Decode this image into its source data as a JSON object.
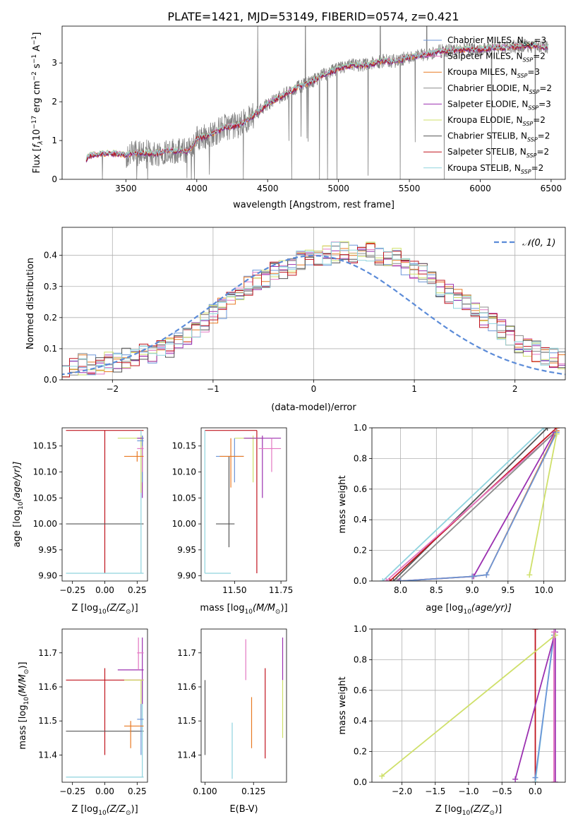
{
  "figure": {
    "title": "PLATE=1421, MJD=53149, FIBERID=0574, z=0.421"
  },
  "colors": {
    "chabrier_miles": "#6b95d8",
    "salpeter_miles": "#e377c2",
    "kroupa_miles": "#e87a24",
    "chabrier_elodie": "#8c8c8c",
    "salpeter_elodie": "#9b30b0",
    "kroupa_elodie": "#cfe06a",
    "chabrier_stelib": "#555555",
    "salpeter_stelib": "#c0141e",
    "kroupa_stelib": "#8fd3de",
    "data": "#808080",
    "normal": "#5b8bd8"
  },
  "chart_data": [
    {
      "id": "spectrum",
      "type": "line",
      "title": "PLATE=1421, MJD=53149, FIBERID=0574, z=0.421",
      "xlabel": "wavelength [Angstrom, rest frame]",
      "ylabel_parts": [
        "Flux [",
        "f",
        "λ",
        "10",
        "−17",
        " erg cm",
        "−2",
        " s",
        "−1",
        " A",
        "−1",
        "]"
      ],
      "xlim": [
        3050,
        6600
      ],
      "ylim": [
        0,
        3.95
      ],
      "xticks": [
        3500,
        4000,
        4500,
        5000,
        5500,
        6000,
        6500
      ],
      "yticks": [
        0,
        1,
        2,
        3
      ],
      "legend": [
        {
          "key": "chabrier_miles",
          "text": "Chabrier MILES, N",
          "sub": "SSP",
          "val": "=3"
        },
        {
          "key": "salpeter_miles",
          "text": "Salpeter MILES, N",
          "sub": "SSP",
          "val": "=2"
        },
        {
          "key": "kroupa_miles",
          "text": "Kroupa MILES, N",
          "sub": "SSP",
          "val": "=3"
        },
        {
          "key": "chabrier_elodie",
          "text": "Chabrier ELODIE, N",
          "sub": "SSP",
          "val": "=2"
        },
        {
          "key": "salpeter_elodie",
          "text": "Salpeter ELODIE, N",
          "sub": "SSP",
          "val": "=3"
        },
        {
          "key": "kroupa_elodie",
          "text": "Kroupa ELODIE, N",
          "sub": "SSP",
          "val": "=2"
        },
        {
          "key": "chabrier_stelib",
          "text": "Chabrier STELIB, N",
          "sub": "SSP",
          "val": "=2"
        },
        {
          "key": "salpeter_stelib",
          "text": "Salpeter STELIB, N",
          "sub": "SSP",
          "val": "=2"
        },
        {
          "key": "kroupa_stelib",
          "text": "Kroupa STELIB, N",
          "sub": "SSP",
          "val": "=2"
        }
      ],
      "model_continuum": [
        [
          3220,
          0.5
        ],
        [
          3240,
          0.62
        ],
        [
          3300,
          0.65
        ],
        [
          3400,
          0.67
        ],
        [
          3500,
          0.63
        ],
        [
          3600,
          0.7
        ],
        [
          3700,
          0.66
        ],
        [
          3800,
          0.75
        ],
        [
          3900,
          0.72
        ],
        [
          3950,
          0.75
        ],
        [
          4000,
          1.05
        ],
        [
          4100,
          1.15
        ],
        [
          4200,
          1.35
        ],
        [
          4300,
          1.4
        ],
        [
          4400,
          1.65
        ],
        [
          4500,
          1.95
        ],
        [
          4600,
          2.15
        ],
        [
          4700,
          2.35
        ],
        [
          4800,
          2.5
        ],
        [
          4900,
          2.7
        ],
        [
          5000,
          2.85
        ],
        [
          5100,
          2.95
        ],
        [
          5200,
          2.95
        ],
        [
          5300,
          3.05
        ],
        [
          5400,
          3.05
        ],
        [
          5500,
          3.15
        ],
        [
          5600,
          3.2
        ],
        [
          5700,
          3.3
        ],
        [
          5800,
          3.32
        ],
        [
          5900,
          3.35
        ],
        [
          6000,
          3.35
        ],
        [
          6100,
          3.4
        ],
        [
          6200,
          3.4
        ],
        [
          6300,
          3.45
        ],
        [
          6400,
          3.45
        ],
        [
          6470,
          3.4
        ]
      ]
    },
    {
      "id": "residuals",
      "type": "histogram",
      "xlabel": "(data-model)/error",
      "ylabel": "Normed distribution",
      "xlim": [
        -2.5,
        2.5
      ],
      "ylim": [
        0,
        0.49
      ],
      "xticks": [
        -2,
        -1,
        0,
        1,
        2
      ],
      "yticks": [
        0.0,
        0.1,
        0.2,
        0.3,
        0.4
      ],
      "bin_width": 0.1,
      "legend": [
        {
          "key": "normal",
          "label": "𝒩(0, 1)"
        }
      ],
      "profile": [
        0.04,
        0.03,
        0.04,
        0.05,
        0.05,
        0.05,
        0.06,
        0.06,
        0.07,
        0.07,
        0.08,
        0.08,
        0.1,
        0.1,
        0.12,
        0.14,
        0.16,
        0.18,
        0.21,
        0.23,
        0.26,
        0.28,
        0.3,
        0.32,
        0.33,
        0.35,
        0.36,
        0.37,
        0.38,
        0.39,
        0.4,
        0.4,
        0.41,
        0.41,
        0.41,
        0.41,
        0.41,
        0.4,
        0.4,
        0.39,
        0.37,
        0.36,
        0.34,
        0.32,
        0.3,
        0.28,
        0.26,
        0.24,
        0.22,
        0.2,
        0.18,
        0.16,
        0.14,
        0.12,
        0.1,
        0.09,
        0.08,
        0.07,
        0.06,
        0.06
      ]
    },
    {
      "id": "age_vs_Z",
      "type": "scatter",
      "xlabel": "Z [log",
      "xlabel_sub": "10",
      "xlabel_rest": "(Z/Z",
      "xlabel_sun": "⊙",
      "xlabel_end": ")]",
      "ylabel": "age  [log",
      "ylabel_sub": "10",
      "ylabel_rest": "(age/yr)]",
      "xlim": [
        -0.33,
        0.33
      ],
      "ylim": [
        9.89,
        10.185
      ],
      "xticks": [
        -0.25,
        0.0,
        0.25
      ],
      "yticks": [
        9.9,
        9.95,
        10.0,
        10.05,
        10.1,
        10.15
      ],
      "points": [
        {
          "key": "salpeter_stelib",
          "x": 0.0,
          "y": 10.18,
          "xe": [
            -0.3,
            0.3
          ],
          "ye": [
            9.905,
            10.18
          ]
        },
        {
          "key": "chabrier_stelib",
          "x": 0.0,
          "y": 10.0,
          "xe": [
            -0.3,
            0.3
          ],
          "ye": [
            10.0,
            10.0
          ]
        },
        {
          "key": "kroupa_stelib",
          "x": 0.28,
          "y": 9.905,
          "xe": [
            -0.3,
            0.3
          ],
          "ye": [
            9.905,
            10.18
          ]
        },
        {
          "key": "kroupa_elodie",
          "x": 0.28,
          "y": 10.165,
          "xe": [
            0.1,
            0.3
          ],
          "ye": [
            10.06,
            10.17
          ]
        },
        {
          "key": "salpeter_elodie",
          "x": 0.29,
          "y": 10.165,
          "xe": [
            0.25,
            0.3
          ],
          "ye": [
            10.05,
            10.17
          ]
        },
        {
          "key": "chabrier_miles",
          "x": 0.29,
          "y": 10.16,
          "xe": [
            0.25,
            0.3
          ],
          "ye": [
            10.08,
            10.17
          ]
        },
        {
          "key": "salpeter_miles",
          "x": 0.29,
          "y": 10.145,
          "xe": [
            0.25,
            0.3
          ],
          "ye": [
            10.1,
            10.15
          ]
        },
        {
          "key": "kroupa_miles",
          "x": 0.25,
          "y": 10.13,
          "xe": [
            0.15,
            0.3
          ],
          "ye": [
            10.12,
            10.14
          ]
        }
      ]
    },
    {
      "id": "age_vs_mass",
      "type": "scatter",
      "xlabel": "mass [log",
      "xlabel_sub": "10",
      "xlabel_rest": "(M/M",
      "xlabel_sun": "⊙",
      "xlabel_end": ")]",
      "xlim": [
        11.32,
        11.78
      ],
      "ylim": [
        9.89,
        10.185
      ],
      "xticks": [
        11.5,
        11.75
      ],
      "yticks": [
        9.9,
        9.95,
        10.0,
        10.05,
        10.1,
        10.15
      ],
      "points": [
        {
          "key": "salpeter_stelib",
          "x": 11.62,
          "y": 10.18,
          "xe": [
            11.34,
            11.62
          ],
          "ye": [
            9.905,
            10.18
          ]
        },
        {
          "key": "chabrier_stelib",
          "x": 11.47,
          "y": 10.0,
          "xe": [
            11.4,
            11.5
          ],
          "ye": [
            9.955,
            10.13
          ]
        },
        {
          "key": "kroupa_stelib",
          "x": 11.34,
          "y": 9.905,
          "xe": [
            11.34,
            11.48
          ],
          "ye": [
            9.905,
            10.18
          ]
        },
        {
          "key": "kroupa_elodie",
          "x": 11.6,
          "y": 10.165,
          "xe": [
            11.5,
            11.65
          ],
          "ye": [
            10.08,
            10.17
          ]
        },
        {
          "key": "salpeter_elodie",
          "x": 11.65,
          "y": 10.165,
          "xe": [
            11.55,
            11.75
          ],
          "ye": [
            10.05,
            10.17
          ]
        },
        {
          "key": "chabrier_miles",
          "x": 11.5,
          "y": 10.13,
          "xe": [
            11.4,
            11.55
          ],
          "ye": [
            10.08,
            10.165
          ]
        },
        {
          "key": "salpeter_miles",
          "x": 11.7,
          "y": 10.145,
          "xe": [
            11.63,
            11.75
          ],
          "ye": [
            10.1,
            10.165
          ]
        },
        {
          "key": "kroupa_miles",
          "x": 11.48,
          "y": 10.13,
          "xe": [
            11.42,
            11.55
          ],
          "ye": [
            10.07,
            10.165
          ]
        }
      ]
    },
    {
      "id": "mass_weight_vs_age",
      "type": "line",
      "xlabel": "age  [log",
      "xlabel_sub": "10",
      "xlabel_rest": "(age/yr)]",
      "ylabel": "mass weight",
      "xlim": [
        7.6,
        10.3
      ],
      "ylim": [
        0,
        1.0
      ],
      "xticks": [
        8.0,
        8.5,
        9.0,
        9.5,
        10.0
      ],
      "yticks": [
        0.0,
        0.2,
        0.4,
        0.6,
        0.8,
        1.0
      ],
      "series": [
        {
          "key": "kroupa_stelib",
          "x": [
            7.75,
            10.0
          ],
          "y": [
            0.0,
            1.0
          ]
        },
        {
          "key": "chabrier_stelib",
          "x": [
            7.9,
            10.05
          ],
          "y": [
            0.0,
            1.0
          ]
        },
        {
          "key": "salpeter_stelib",
          "x": [
            7.85,
            10.18
          ],
          "y": [
            0.0,
            1.0
          ]
        },
        {
          "key": "salpeter_miles",
          "x": [
            7.8,
            10.18
          ],
          "y": [
            0.0,
            0.98
          ]
        },
        {
          "key": "chabrier_elodie",
          "x": [
            7.95,
            10.15
          ],
          "y": [
            0.0,
            0.97
          ]
        },
        {
          "key": "salpeter_elodie",
          "x": [
            7.98,
            9.02,
            10.15
          ],
          "y": [
            0.0,
            0.03,
            0.97
          ]
        },
        {
          "key": "kroupa_miles",
          "x": [
            8.0,
            9.0,
            9.2,
            10.18
          ],
          "y": [
            0.0,
            0.03,
            0.04,
            0.98
          ]
        },
        {
          "key": "chabrier_miles",
          "x": [
            8.0,
            9.0,
            9.2,
            10.18
          ],
          "y": [
            0.0,
            0.03,
            0.04,
            0.97
          ]
        },
        {
          "key": "kroupa_elodie",
          "x": [
            9.8,
            10.18
          ],
          "y": [
            0.04,
            0.96
          ]
        }
      ]
    },
    {
      "id": "mass_vs_Z",
      "type": "scatter",
      "xlabel": "Z [log",
      "xlabel_sub": "10",
      "xlabel_rest": "(Z/Z",
      "xlabel_sun": "⊙",
      "xlabel_end": ")]",
      "ylabel": "mass [log",
      "ylabel_sub": "10",
      "ylabel_rest": "(M/M",
      "ylabel_sun": "⊙",
      "ylabel_end": ")]",
      "xlim": [
        -0.33,
        0.33
      ],
      "ylim": [
        11.32,
        11.77
      ],
      "xticks": [
        -0.25,
        0.0,
        0.25
      ],
      "yticks": [
        11.4,
        11.5,
        11.6,
        11.7
      ],
      "points": [
        {
          "key": "salpeter_stelib",
          "x": 0.0,
          "y": 11.62,
          "xe": [
            -0.3,
            0.3
          ],
          "ye": [
            11.4,
            11.655
          ]
        },
        {
          "key": "chabrier_stelib",
          "x": 0.0,
          "y": 11.47,
          "xe": [
            -0.3,
            0.3
          ],
          "ye": [
            11.47,
            11.47
          ]
        },
        {
          "key": "kroupa_stelib",
          "x": 0.29,
          "y": 11.335,
          "xe": [
            -0.3,
            0.3
          ],
          "ye": [
            11.335,
            11.62
          ]
        },
        {
          "key": "salpeter_elodie",
          "x": 0.29,
          "y": 11.65,
          "xe": [
            0.1,
            0.3
          ],
          "ye": [
            11.55,
            11.745
          ]
        },
        {
          "key": "kroupa_elodie",
          "x": 0.28,
          "y": 11.62,
          "xe": [
            0.15,
            0.3
          ],
          "ye": [
            11.5,
            11.62
          ]
        },
        {
          "key": "salpeter_miles",
          "x": 0.26,
          "y": 11.7,
          "xe": [
            0.25,
            0.3
          ],
          "ye": [
            11.65,
            11.745
          ]
        },
        {
          "key": "chabrier_miles",
          "x": 0.28,
          "y": 11.505,
          "xe": [
            0.25,
            0.3
          ],
          "ye": [
            11.4,
            11.55
          ]
        },
        {
          "key": "kroupa_miles",
          "x": 0.2,
          "y": 11.485,
          "xe": [
            0.15,
            0.3
          ],
          "ye": [
            11.42,
            11.5
          ]
        }
      ]
    },
    {
      "id": "mass_vs_ebv",
      "type": "scatter",
      "xlabel": "E(B-V)",
      "xlim": [
        0.098,
        0.142
      ],
      "ylim": [
        11.32,
        11.77
      ],
      "xticks": [
        0.1,
        0.125
      ],
      "yticks": [
        11.4,
        11.5,
        11.6,
        11.7
      ],
      "points": [
        {
          "key": "chabrier_stelib",
          "x": 0.1,
          "y": 11.5,
          "xe": [
            0.1,
            0.1
          ],
          "ye": [
            11.4,
            11.62
          ]
        },
        {
          "key": "kroupa_stelib",
          "x": 0.114,
          "y": 11.4,
          "xe": [
            0.114,
            0.114
          ],
          "ye": [
            11.33,
            11.495
          ]
        },
        {
          "key": "salpeter_miles",
          "x": 0.121,
          "y": 11.68,
          "xe": [
            0.121,
            0.121
          ],
          "ye": [
            11.62,
            11.74
          ]
        },
        {
          "key": "kroupa_miles",
          "x": 0.124,
          "y": 11.49,
          "xe": [
            0.124,
            0.124
          ],
          "ye": [
            11.42,
            11.57
          ]
        },
        {
          "key": "salpeter_stelib",
          "x": 0.131,
          "y": 11.52,
          "xe": [
            0.131,
            0.131
          ],
          "ye": [
            11.39,
            11.655
          ]
        },
        {
          "key": "salpeter_elodie",
          "x": 0.14,
          "y": 11.7,
          "xe": [
            0.14,
            0.14
          ],
          "ye": [
            11.62,
            11.745
          ]
        },
        {
          "key": "kroupa_elodie",
          "x": 0.14,
          "y": 11.53,
          "xe": [
            0.14,
            0.14
          ],
          "ye": [
            11.45,
            11.62
          ]
        }
      ]
    },
    {
      "id": "mass_weight_vs_Z",
      "type": "line",
      "xlabel": "Z [log",
      "xlabel_sub": "10",
      "xlabel_rest": "(Z/Z",
      "xlabel_sun": "⊙",
      "xlabel_end": ")]",
      "ylabel": "mass weight",
      "xlim": [
        -2.45,
        0.45
      ],
      "ylim": [
        0,
        1.0
      ],
      "xticks": [
        -2.0,
        -1.5,
        -1.0,
        -0.5,
        0.0
      ],
      "yticks": [
        0.0,
        0.2,
        0.4,
        0.6,
        0.8,
        1.0
      ],
      "series": [
        {
          "key": "salpeter_stelib",
          "x": [
            0.0,
            0.0
          ],
          "y": [
            0.0,
            1.0
          ]
        },
        {
          "key": "kroupa_stelib",
          "x": [
            0.0,
            0.28
          ],
          "y": [
            0.0,
            0.98
          ]
        },
        {
          "key": "chabrier_miles",
          "x": [
            0.0,
            0.28
          ],
          "y": [
            0.03,
            0.96
          ]
        },
        {
          "key": "salpeter_elodie",
          "x": [
            -0.3,
            0.3,
            0.3
          ],
          "y": [
            0.02,
            0.98,
            0.0
          ]
        },
        {
          "key": "kroupa_elodie",
          "x": [
            -2.3,
            0.3
          ],
          "y": [
            0.04,
            0.96
          ]
        },
        {
          "key": "salpeter_miles",
          "x": [
            0.28,
            0.28
          ],
          "y": [
            0.0,
            0.98
          ]
        }
      ]
    }
  ]
}
